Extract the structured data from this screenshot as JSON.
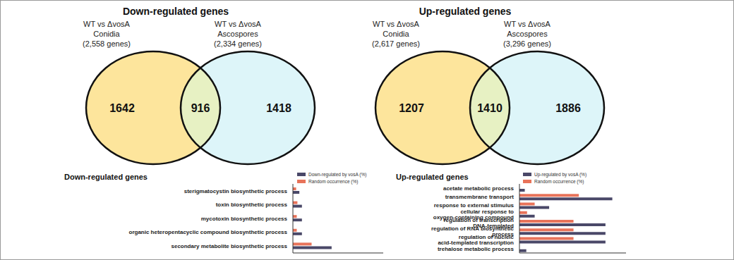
{
  "chart_data": [
    {
      "type": "venn",
      "title": "Down-regulated genes",
      "sets": [
        {
          "label": [
            "WT vs ΔvosA",
            "Conidia",
            "(2,558 genes)"
          ]
        },
        {
          "label": [
            "WT vs ΔvosA",
            "Ascospores",
            "(2,334 genes)"
          ]
        }
      ],
      "values": [
        1642,
        916,
        1418
      ],
      "colors": [
        "#fde59c",
        "#ddf5f9",
        "#e7f1c3"
      ]
    },
    {
      "type": "venn",
      "title": "Up-regulated genes",
      "sets": [
        {
          "label": [
            "WT vs ΔvosA",
            "Conidia",
            "(2,617 genes)"
          ]
        },
        {
          "label": [
            "WT vs ΔvosA",
            "Ascospores",
            "(3,296 genes)"
          ]
        }
      ],
      "values": [
        1207,
        1410,
        1886
      ],
      "colors": [
        "#fde59c",
        "#ddf5f9",
        "#e7f1c3"
      ]
    },
    {
      "type": "bar",
      "orientation": "horizontal",
      "title": "Down-regulated genes",
      "categories": [
        "sterigmatocystin biosynthetic process",
        "toxin biosynthetic process",
        "mycotoxin biosynthetic process",
        "organic heteropentacyclic compound biosynthetic process",
        "secondary metabolite biosynthetic process"
      ],
      "series": [
        {
          "name": "Down-regulated by vosA (%)",
          "color": "#4a4868",
          "values": [
            1.0,
            1.4,
            1.4,
            1.4,
            6.0
          ]
        },
        {
          "name": "Random occurrence (%)",
          "color": "#e8735a",
          "values": [
            0.5,
            0.7,
            0.6,
            0.6,
            2.9
          ]
        }
      ],
      "xlim": [
        0,
        14
      ],
      "tick_labels": "y",
      "legend": "upper right"
    },
    {
      "type": "bar",
      "orientation": "horizontal",
      "title": "Up-regulated genes",
      "categories": [
        "acetate metabolic process",
        "transmembrane transport",
        "response to external stimulus",
        "cellular response to oxygen-containing compound",
        "regulation of transcription DNA-templated",
        "regulation of RNA biosynthetic process",
        "regulation of nucleic acid-templated transcription",
        "trehalose metabolic process"
      ],
      "series": [
        {
          "name": "Up-regulated by vosA (%)",
          "color": "#4a4868",
          "values": [
            0.7,
            12.2,
            3.9,
            2.0,
            11.3,
            11.3,
            11.3,
            0.9
          ]
        },
        {
          "name": "Random occurrence (%)",
          "color": "#e8735a",
          "values": [
            0,
            7.8,
            2.0,
            1.0,
            7.1,
            7.1,
            7.1,
            0
          ]
        }
      ],
      "xlim": [
        0,
        14
      ],
      "tick_labels": "y",
      "legend": "upper right"
    }
  ]
}
